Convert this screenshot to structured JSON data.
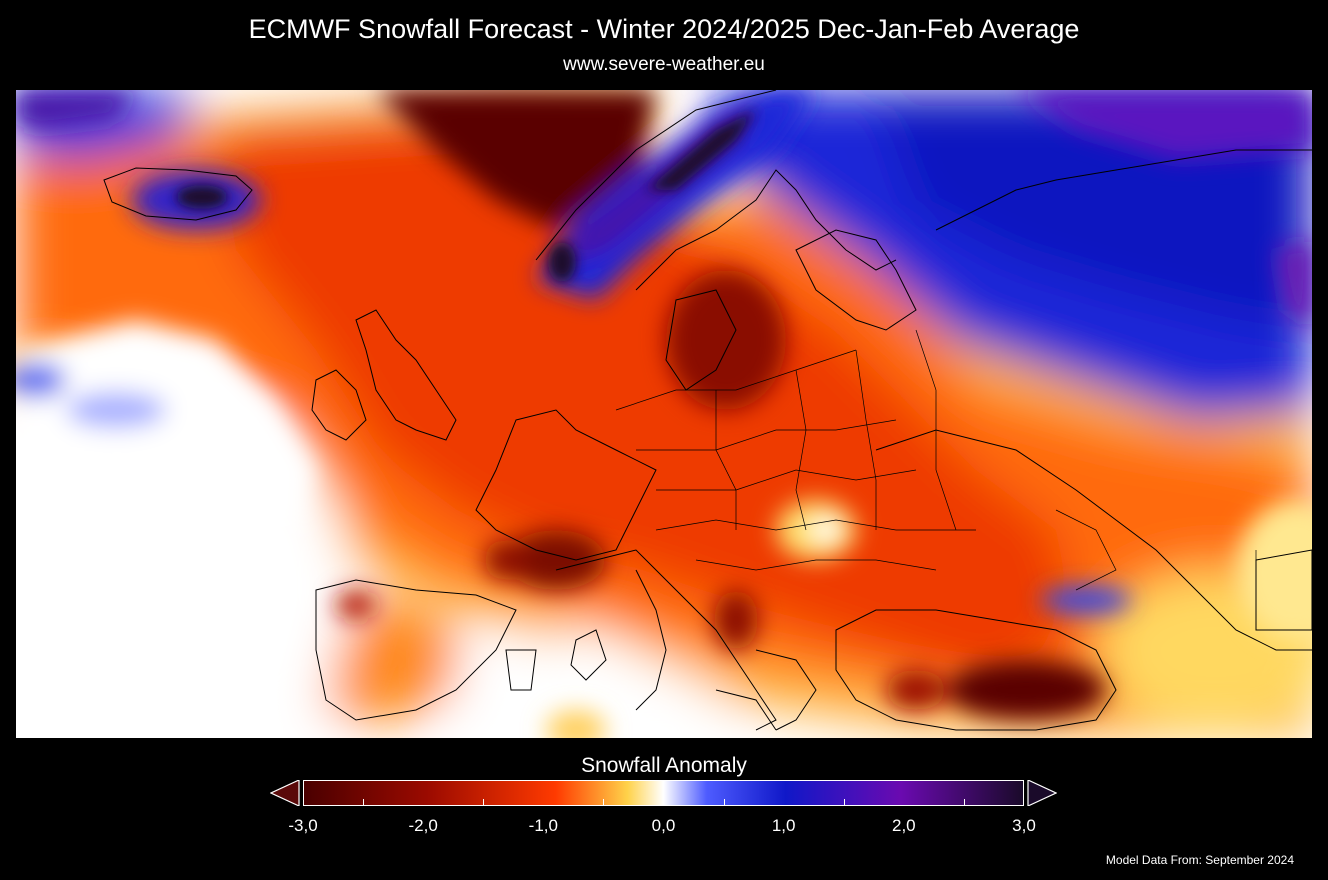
{
  "header": {
    "title": "ECMWF Snowfall Forecast - Winter 2024/2025  Dec-Jan-Feb Average",
    "subtitle": "www.severe-weather.eu"
  },
  "legend": {
    "title": "Snowfall Anomaly",
    "ticks": [
      "-3,0",
      "-2,0",
      "-1,0",
      "0,0",
      "1,0",
      "2,0",
      "3,0"
    ],
    "range": [
      -3.0,
      3.0
    ],
    "colors": {
      "min": "#4a0000",
      "neg_strong": "#9a0a00",
      "neg_mid": "#ff3a00",
      "neg_weak": "#ffd24a",
      "zero": "#ffffff",
      "pos_weak": "#4e5cff",
      "pos_mid": "#1018c8",
      "pos_strong": "#6a0ab0",
      "max": "#1a0a2a"
    }
  },
  "map": {
    "region": "Europe",
    "under_color": "#5a0a0a",
    "over_color": "#1a0a2a"
  },
  "footer": {
    "source_note": "Model Data From: September 2024"
  }
}
